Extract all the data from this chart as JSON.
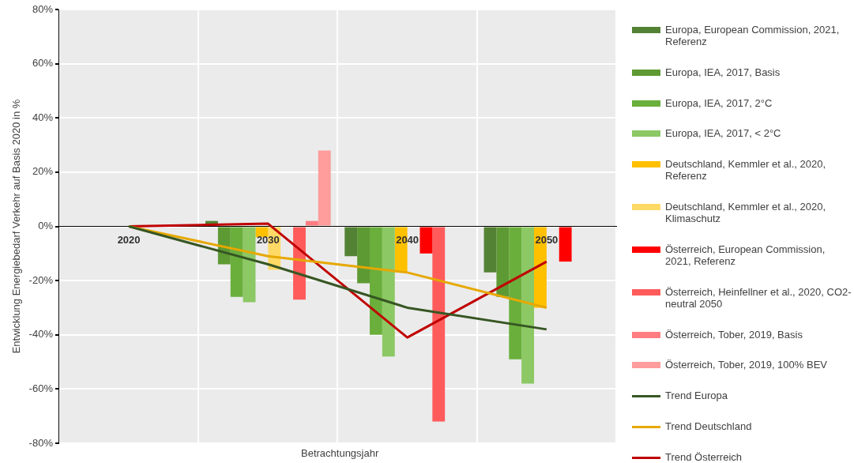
{
  "chart_data": {
    "type": "bar",
    "xlabel": "Betrachtungsjahr",
    "ylabel": "Entwicklung Energiebedarf Verkehr auf Basis 2020 in %",
    "categories": [
      "2020",
      "2030",
      "2040",
      "2050"
    ],
    "ylim": [
      -80,
      80
    ],
    "yticks": [
      {
        "value": -80,
        "label": "-80%"
      },
      {
        "value": -60,
        "label": "-60%"
      },
      {
        "value": -40,
        "label": "-40%"
      },
      {
        "value": -20,
        "label": "-20%"
      },
      {
        "value": 0,
        "label": "0%"
      },
      {
        "value": 20,
        "label": "20%"
      },
      {
        "value": 40,
        "label": "40%"
      },
      {
        "value": 60,
        "label": "60%"
      },
      {
        "value": 80,
        "label": "80%"
      }
    ],
    "grid": true,
    "legend": "right",
    "series": [
      {
        "name": "Europa, European Commission, 2021, Referenz",
        "color": "#548235",
        "values": [
          null,
          2,
          -11,
          -17
        ]
      },
      {
        "name": "Europa, IEA, 2017, Basis",
        "color": "#5e9a33",
        "values": [
          null,
          -14,
          -21,
          -26
        ]
      },
      {
        "name": "Europa, IEA, 2017, 2°C",
        "color": "#6aaf3c",
        "values": [
          null,
          -26,
          -40,
          -49
        ]
      },
      {
        "name": "Europa, IEA, 2017, < 2°C",
        "color": "#8cc864",
        "values": [
          null,
          -28,
          -48,
          -58
        ]
      },
      {
        "name": "Deutschland, Kemmler et al., 2020, Referenz",
        "color": "#ffc000",
        "values": [
          null,
          -4,
          -17,
          -30
        ]
      },
      {
        "name": "Deutschland, Kemmler et al., 2020, Klimaschutz",
        "color": "#ffd966",
        "values": [
          null,
          -16,
          null,
          null
        ]
      },
      {
        "name": "Österreich, European Commission, 2021, Referenz",
        "color": "#ff0000",
        "values": [
          null,
          null,
          -10,
          -13
        ]
      },
      {
        "name": "Österreich, Heinfellner et al., 2020, CO2-neutral 2050",
        "color": "#ff5b5b",
        "values": [
          null,
          -27,
          -72,
          null
        ]
      },
      {
        "name": "Österreich, Tober, 2019, Basis",
        "color": "#ff7c80",
        "values": [
          null,
          2,
          null,
          null
        ]
      },
      {
        "name": "Österreich, Tober, 2019, 100% BEV",
        "color": "#ff9c9c",
        "values": [
          null,
          28,
          null,
          null
        ]
      },
      {
        "name": "Trend Europa",
        "type": "line",
        "color": "#375623",
        "values": [
          0,
          -14,
          -30,
          -38
        ]
      },
      {
        "name": "Trend Deutschland",
        "type": "line",
        "color": "#e6a800",
        "values": [
          0,
          -11,
          -17,
          -30
        ]
      },
      {
        "name": "Trend Österreich",
        "type": "line",
        "color": "#c00000",
        "values": [
          0,
          1,
          -41,
          -13
        ]
      }
    ]
  }
}
